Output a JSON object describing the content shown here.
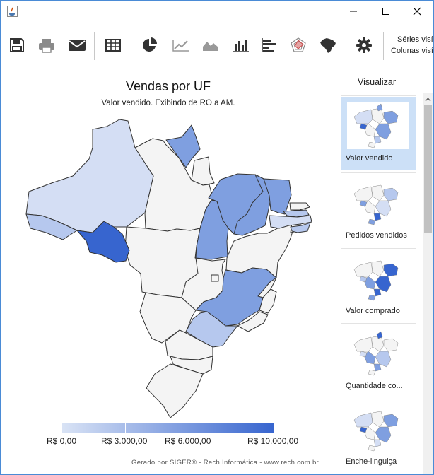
{
  "window": {
    "buttons": [
      "minimize",
      "maximize",
      "close"
    ]
  },
  "toolbar": {
    "icons": [
      "save-icon",
      "print-icon",
      "email-icon",
      "table-icon",
      "pie-chart-icon",
      "line-chart-icon",
      "area-chart-icon",
      "bar-chart-icon",
      "horizontal-bar-icon",
      "radar-chart-icon",
      "brazil-map-icon",
      "gear-icon"
    ],
    "series_label": "Séries visív",
    "columns_label": "Colunas visív"
  },
  "chart": {
    "title": "Vendas por UF",
    "subtitle": "Valor vendido. Exibindo de RO a AM.",
    "legend": {
      "labels": [
        "R$ 0,00",
        "R$ 3.000,00",
        "R$ 6.000,00",
        "R$ 10.000,00"
      ],
      "colors": [
        "#d9e3f5",
        "#3765cf"
      ]
    },
    "credit": "Gerado por SIGER® - Rech Informática - www.rech.com.br"
  },
  "chart_data": {
    "type": "heatmap",
    "title": "Vendas por UF",
    "subtitle": "Valor vendido. Exibindo de RO a AM.",
    "legend_ticks": [
      "R$ 0,00",
      "R$ 3.000,00",
      "R$ 6.000,00",
      "R$ 10.000,00"
    ],
    "regions": [
      "RO",
      "AM",
      "RR",
      "AC",
      "MA",
      "PI",
      "CE",
      "TO",
      "MG",
      "SP",
      "PB",
      "PE",
      "AL"
    ]
  },
  "sidebar": {
    "title": "Visualizar",
    "items": [
      {
        "label": "Valor vendido",
        "selected": true
      },
      {
        "label": "Pedidos vendidos",
        "selected": false
      },
      {
        "label": "Valor comprado",
        "selected": false
      },
      {
        "label": "Quantidade co...",
        "selected": false
      },
      {
        "label": "Enche-linguiça",
        "selected": false
      }
    ]
  },
  "colors": {
    "accent": "#4a8bd6",
    "selected": "#cce0f7",
    "state_empty": "#f4f4f4",
    "state_dark": "#3765cf",
    "state_mid": "#7f9fe0",
    "state_light": "#b6c8ee",
    "state_pale": "#d4def4"
  }
}
